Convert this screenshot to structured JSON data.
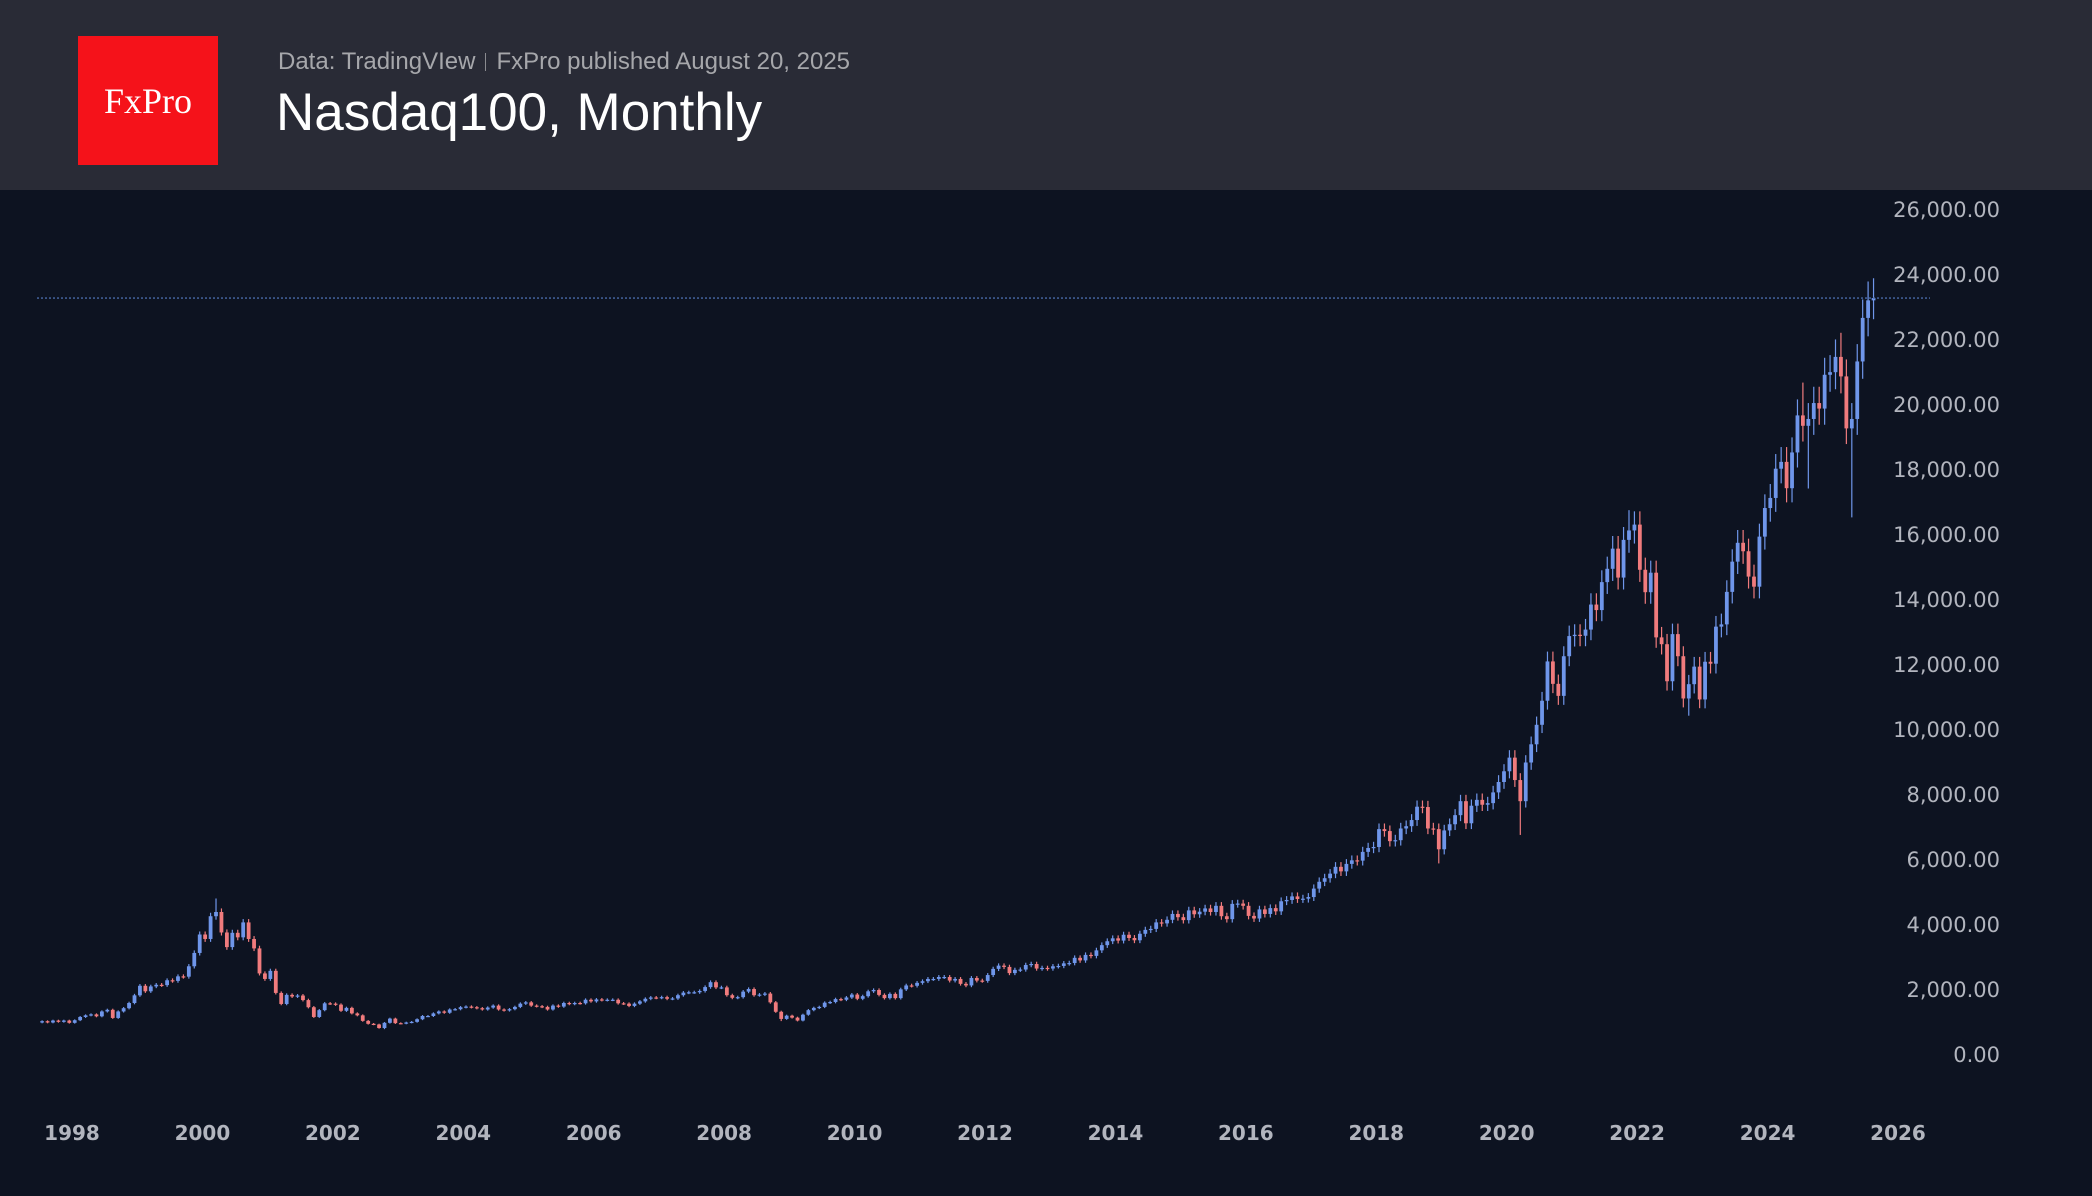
{
  "header": {
    "logo_text": "FxPro",
    "source": "Data: TradingVIew",
    "published": "FxPro published August 20, 2025",
    "title": "Nasdaq100, Monthly"
  },
  "colors": {
    "header_bg": "#292b36",
    "chart_bg": "#0d1321",
    "logo": "#f5121a",
    "up": "#6f96ea",
    "down": "#f07b7d",
    "price_line": "#4a6aa8"
  },
  "chart_data": {
    "type": "candlestick",
    "title": "Nasdaq100, Monthly",
    "ylim": [
      -1500,
      27000
    ],
    "y_ticks": [
      "0.00",
      "2,000.00",
      "4,000.00",
      "6,000.00",
      "8,000.00",
      "10,000.00",
      "12,000.00",
      "14,000.00",
      "16,000.00",
      "18,000.00",
      "20,000.00",
      "22,000.00",
      "24,000.00",
      "26,000.00"
    ],
    "y_tick_values": [
      0,
      2000,
      4000,
      6000,
      8000,
      10000,
      12000,
      14000,
      16000,
      18000,
      20000,
      22000,
      24000,
      26000
    ],
    "x_ticks": [
      "1998",
      "2000",
      "2002",
      "2004",
      "2006",
      "2008",
      "2010",
      "2012",
      "2014",
      "2016",
      "2018",
      "2020",
      "2022",
      "2024",
      "2026"
    ],
    "xlim": [
      "1997-06",
      "2026-06"
    ],
    "last_price": 23290,
    "grid": false,
    "start_month": "1997-07",
    "first_open": 1000,
    "close": [
      1040,
      1000,
      1060,
      1020,
      1060,
      990,
      1070,
      1170,
      1220,
      1250,
      1190,
      1340,
      1390,
      1140,
      1340,
      1440,
      1600,
      1836,
      2130,
      1960,
      2110,
      2160,
      2150,
      2300,
      2280,
      2420,
      2410,
      2730,
      3140,
      3708,
      3570,
      4270,
      4400,
      3770,
      3320,
      3760,
      3620,
      4080,
      3570,
      3280,
      2510,
      2340,
      2590,
      1910,
      1570,
      1850,
      1800,
      1830,
      1690,
      1470,
      1170,
      1380,
      1590,
      1580,
      1550,
      1360,
      1450,
      1280,
      1220,
      1050,
      960,
      940,
      830,
      990,
      1120,
      980,
      970,
      1000,
      1020,
      1100,
      1200,
      1200,
      1280,
      1340,
      1300,
      1400,
      1410,
      1470,
      1490,
      1470,
      1440,
      1400,
      1460,
      1520,
      1400,
      1370,
      1410,
      1480,
      1580,
      1620,
      1520,
      1500,
      1480,
      1400,
      1520,
      1490,
      1600,
      1570,
      1600,
      1590,
      1700,
      1650,
      1710,
      1690,
      1700,
      1700,
      1590,
      1580,
      1510,
      1580,
      1650,
      1730,
      1770,
      1760,
      1780,
      1730,
      1740,
      1840,
      1920,
      1930,
      1930,
      1970,
      2090,
      2240,
      2080,
      2080,
      1840,
      1760,
      1780,
      1950,
      2030,
      1840,
      1860,
      1890,
      1620,
      1330,
      1110,
      1210,
      1150,
      1060,
      1240,
      1380,
      1450,
      1480,
      1610,
      1630,
      1720,
      1700,
      1770,
      1860,
      1730,
      1810,
      1960,
      2000,
      1850,
      1750,
      1880,
      1750,
      2020,
      2140,
      2130,
      2220,
      2270,
      2340,
      2340,
      2400,
      2400,
      2290,
      2340,
      2190,
      2140,
      2370,
      2290,
      2280,
      2460,
      2650,
      2750,
      2710,
      2520,
      2620,
      2630,
      2770,
      2800,
      2660,
      2680,
      2660,
      2730,
      2740,
      2820,
      2830,
      2990,
      2910,
      3080,
      3050,
      3220,
      3380,
      3500,
      3590,
      3520,
      3700,
      3600,
      3530,
      3730,
      3850,
      3880,
      4080,
      4050,
      4160,
      4340,
      4240,
      4150,
      4450,
      4330,
      4410,
      4510,
      4400,
      4590,
      4270,
      4180,
      4650,
      4660,
      4590,
      4280,
      4200,
      4480,
      4340,
      4520,
      4420,
      4730,
      4770,
      4880,
      4800,
      4810,
      4860,
      5120,
      5330,
      5440,
      5580,
      5790,
      5650,
      5880,
      5990,
      5980,
      6250,
      6370,
      6400,
      6950,
      6890,
      6580,
      6610,
      6970,
      7040,
      7230,
      7640,
      7630,
      6970,
      6950,
      6330,
      6910,
      7100,
      7380,
      7810,
      7130,
      7670,
      7850,
      7700,
      7750,
      8080,
      8400,
      8730,
      9150,
      8460,
      7810,
      9000,
      9560,
      10160,
      10900,
      12110,
      11420,
      11050,
      12270,
      12890,
      12930,
      12900,
      13090,
      13860,
      13690,
      14550,
      14960,
      15580,
      14690,
      15850,
      16140,
      16320,
      14930,
      14240,
      14840,
      12850,
      12640,
      11500,
      12950,
      12270,
      10970,
      11410,
      11950,
      10940,
      12100,
      12040,
      13180,
      13250,
      14250,
      15180,
      15760,
      15500,
      14720,
      14410,
      15950,
      16830,
      17140,
      18040,
      18250,
      17440,
      18540,
      19680,
      19360,
      19570,
      20060,
      19890,
      20930,
      21010,
      21480,
      20880,
      19280,
      19570,
      21340,
      22680,
      23220,
      23290
    ],
    "extremes": {
      "2000-03": {
        "high": 4816
      },
      "2002-10": {
        "low": 795
      },
      "2008-11": {
        "low": 1043
      },
      "2018-12": {
        "low": 5895
      },
      "2020-03": {
        "low": 6771
      },
      "2021-11": {
        "high": 16764
      },
      "2022-10": {
        "low": 10440
      },
      "2022-12": {
        "low": 10671
      },
      "2024-07": {
        "high": 20690
      },
      "2024-08": {
        "low": 17430
      },
      "2025-02": {
        "high": 22222
      },
      "2025-04": {
        "low": 16542
      },
      "2025-08": {
        "high": 23900
      }
    }
  }
}
